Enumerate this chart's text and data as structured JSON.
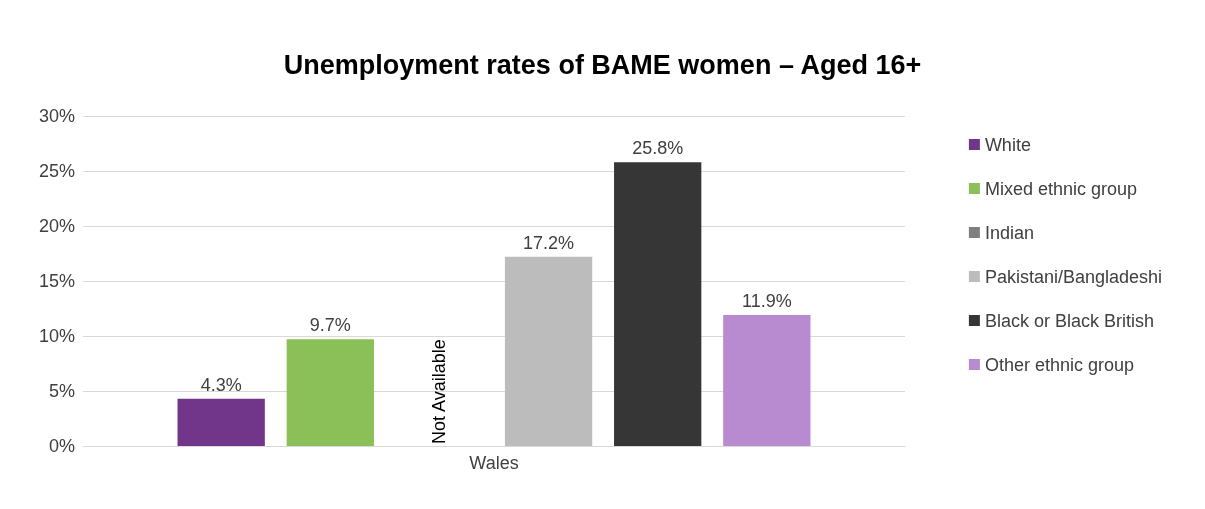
{
  "chart_data": {
    "type": "bar",
    "title": "Unemployment rates of BAME women – Aged 16+",
    "categories": [
      "Wales"
    ],
    "series": [
      {
        "name": "White",
        "color": "#71368a",
        "values": [
          4.3
        ],
        "value_labels": [
          "4.3%"
        ]
      },
      {
        "name": "Mixed ethnic group",
        "color": "#8bc058",
        "values": [
          9.7
        ],
        "value_labels": [
          "9.7%"
        ]
      },
      {
        "name": "Indian",
        "color": "#7f7f7f",
        "values": [
          null
        ],
        "value_labels": [
          null
        ]
      },
      {
        "name": "Pakistani/Bangladeshi",
        "color": "#bcbcbc",
        "values": [
          17.2
        ],
        "value_labels": [
          "17.2%"
        ]
      },
      {
        "name": "Black or Black British",
        "color": "#363636",
        "values": [
          25.8
        ],
        "value_labels": [
          "25.8%"
        ]
      },
      {
        "name": "Other ethnic group",
        "color": "#b88bd0",
        "values": [
          11.9
        ],
        "value_labels": [
          "11.9%"
        ]
      }
    ],
    "annotations": [
      "Not Available"
    ],
    "ylim": [
      0,
      30
    ],
    "yticks": [
      {
        "value": 0,
        "label": "0%"
      },
      {
        "value": 5,
        "label": "5%"
      },
      {
        "value": 10,
        "label": "10%"
      },
      {
        "value": 15,
        "label": "15%"
      },
      {
        "value": 20,
        "label": "20%"
      },
      {
        "value": 25,
        "label": "25%"
      },
      {
        "value": 30,
        "label": "30%"
      }
    ],
    "grid": "y",
    "legend": "right"
  }
}
